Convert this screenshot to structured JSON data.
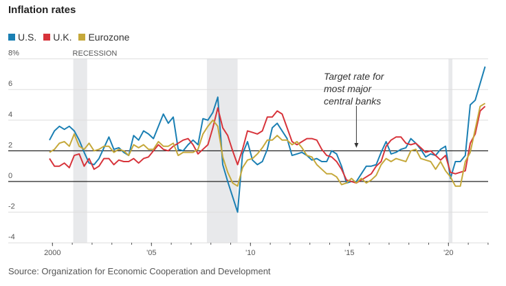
{
  "chart_data": {
    "type": "line",
    "title": "Inflation rates",
    "source": "Source: Organization for Economic Cooperation and Development",
    "ylim": [
      -4,
      8
    ],
    "y_ticks": [
      "8%",
      "6",
      "4",
      "2",
      "0",
      "-2",
      "-4"
    ],
    "y_tick_values": [
      8,
      6,
      4,
      2,
      0,
      -2,
      -4
    ],
    "x_ticks": [
      "2000",
      "'05",
      "'10",
      "'15",
      "'20"
    ],
    "x_tick_values": [
      2000,
      2005,
      2010,
      2015,
      2020
    ],
    "x_start": 2000,
    "x_step": 0.25,
    "grid": true,
    "legend_position": "top-left",
    "reference_lines": [
      2,
      0
    ],
    "recession_label": "RECESSION",
    "recessions": [
      [
        2001.2,
        2001.9
      ],
      [
        2007.95,
        2009.5
      ],
      [
        2020.15,
        2020.35
      ]
    ],
    "annotation": [
      "Target rate for",
      "most major",
      "central banks"
    ],
    "annotation_target": {
      "x": 2015.5,
      "y": 2
    },
    "series": [
      {
        "name": "U.S.",
        "color": "#1a7fb3",
        "values": [
          2.7,
          3.3,
          3.6,
          3.4,
          3.6,
          3.3,
          2.7,
          1.9,
          1.2,
          1.1,
          1.5,
          2.2,
          2.9,
          2.1,
          2.2,
          1.9,
          1.7,
          3.0,
          2.7,
          3.3,
          3.1,
          2.8,
          3.6,
          4.4,
          3.8,
          4.2,
          2.1,
          2.0,
          2.4,
          2.7,
          2.4,
          4.1,
          4.0,
          4.5,
          5.5,
          1.1,
          0.0,
          -1.0,
          -2.0,
          1.8,
          2.6,
          1.4,
          1.1,
          1.3,
          2.1,
          3.5,
          3.8,
          3.3,
          2.8,
          1.7,
          1.8,
          1.9,
          1.7,
          1.4,
          1.5,
          1.3,
          1.3,
          2.0,
          1.8,
          1.0,
          -0.1,
          0.0,
          0.0,
          0.5,
          1.0,
          1.0,
          1.1,
          1.9,
          2.6,
          1.8,
          1.9,
          2.1,
          2.2,
          2.8,
          2.5,
          2.1,
          1.6,
          1.8,
          1.7,
          2.1,
          2.3,
          0.2,
          1.3,
          1.3,
          1.7,
          5.0,
          5.3,
          6.4,
          7.5
        ]
      },
      {
        "name": "U.K.",
        "color": "#d7333a",
        "values": [
          1.5,
          1.0,
          1.0,
          1.2,
          0.9,
          1.7,
          1.8,
          1.0,
          1.5,
          0.8,
          1.0,
          1.5,
          1.5,
          1.1,
          1.4,
          1.3,
          1.3,
          1.5,
          1.2,
          1.5,
          1.6,
          2.0,
          2.4,
          2.1,
          2.0,
          2.3,
          2.5,
          2.7,
          2.8,
          2.4,
          1.8,
          2.1,
          2.4,
          3.5,
          4.8,
          3.5,
          3.0,
          2.0,
          1.1,
          2.1,
          3.3,
          3.2,
          3.1,
          3.3,
          4.2,
          4.2,
          4.6,
          4.4,
          3.5,
          2.6,
          2.4,
          2.6,
          2.8,
          2.8,
          2.7,
          2.1,
          1.7,
          1.6,
          1.3,
          0.8,
          0.1,
          0.0,
          -0.1,
          0.1,
          0.3,
          0.5,
          1.0,
          1.3,
          2.3,
          2.7,
          2.9,
          2.9,
          2.5,
          2.4,
          2.5,
          2.2,
          1.9,
          2.0,
          1.7,
          1.4,
          1.7,
          0.6,
          0.5,
          0.6,
          0.7,
          2.5,
          3.1,
          4.6,
          4.9
        ]
      },
      {
        "name": "Eurozone",
        "color": "#c5a83a",
        "values": [
          1.9,
          2.1,
          2.5,
          2.6,
          2.3,
          3.1,
          2.3,
          2.1,
          2.5,
          2.0,
          2.1,
          2.3,
          2.3,
          1.9,
          2.1,
          2.0,
          1.7,
          2.4,
          2.2,
          2.4,
          2.1,
          2.1,
          2.6,
          2.3,
          2.3,
          2.5,
          1.7,
          1.9,
          1.9,
          1.9,
          2.1,
          3.1,
          3.6,
          4.0,
          3.6,
          1.6,
          0.6,
          -0.1,
          -0.3,
          0.9,
          1.4,
          1.5,
          1.8,
          2.2,
          2.7,
          2.7,
          3.0,
          2.7,
          2.7,
          2.4,
          2.6,
          2.2,
          1.7,
          1.6,
          1.1,
          0.8,
          0.5,
          0.5,
          0.3,
          -0.2,
          -0.1,
          0.2,
          -0.1,
          0.2,
          -0.1,
          0.1,
          0.4,
          1.1,
          1.5,
          1.3,
          1.5,
          1.4,
          1.3,
          2.0,
          2.1,
          1.5,
          1.4,
          1.3,
          0.8,
          1.3,
          0.7,
          0.3,
          -0.3,
          -0.3,
          1.3,
          1.9,
          3.4,
          4.9,
          5.1
        ]
      }
    ]
  }
}
